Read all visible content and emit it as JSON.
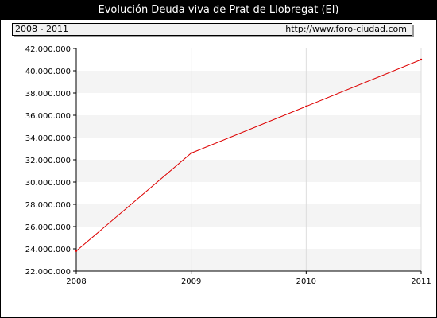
{
  "chart_data": {
    "type": "line",
    "title": "Evolución Deuda viva de Prat de Llobregat (El)",
    "subtitle_left": "2008 - 2011",
    "subtitle_right": "http://www.foro-ciudad.com",
    "x": [
      "2008",
      "2009",
      "2010",
      "2011"
    ],
    "series": [
      {
        "values": [
          23800000,
          32600000,
          36800000,
          41000000
        ]
      }
    ],
    "ylim": [
      22000000,
      42000000
    ],
    "yticks": [
      "22.000.000",
      "24.000.000",
      "26.000.000",
      "28.000.000",
      "30.000.000",
      "32.000.000",
      "34.000.000",
      "36.000.000",
      "38.000.000",
      "40.000.000",
      "42.000.000"
    ],
    "grid": true,
    "line_color": "#dd0000",
    "band_color": "#f4f4f4"
  }
}
